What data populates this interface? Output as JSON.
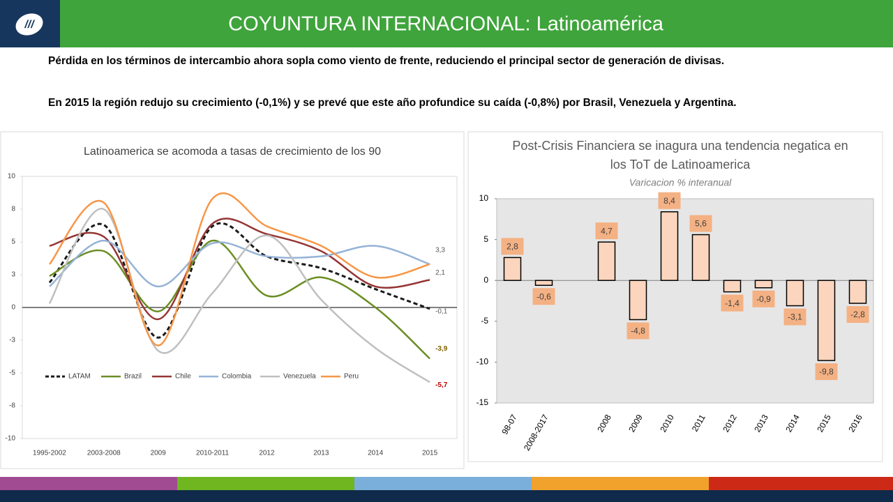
{
  "header": {
    "title": "COYUNTURA INTERNACIONAL: Latinoamérica"
  },
  "paragraphs": [
    "Pérdida en los términos de intercambio ahora sopla como viento de frente, reduciendo el principal sector de generación de divisas.",
    "En 2015 la región redujo su crecimiento (-0,1%) y se prevé que este año profundice su caída (-0,8%) por Brasil, Venezuela y Argentina."
  ],
  "chart_data": [
    {
      "type": "line",
      "title": "Latinoamerica se acomoda a tasas de crecimiento de los 90",
      "categories": [
        "1995-2002",
        "2003-2008",
        "2009",
        "2010-2011",
        "2012",
        "2013",
        "2014",
        "2015"
      ],
      "ylim": [
        -10,
        10
      ],
      "yticks": [
        10,
        {
          "value": 7.5,
          "label": "8"
        },
        5,
        {
          "value": 2.5,
          "label": "3"
        },
        0,
        {
          "value": -2.5,
          "label": "-3"
        },
        -5,
        {
          "value": -7.5,
          "label": "-8"
        },
        -10
      ],
      "series": [
        {
          "name": "LATAM",
          "color": "#1a1a1a",
          "dashed": true,
          "values": [
            1.9,
            6.3,
            -2.3,
            6.2,
            3.9,
            3.0,
            1.4,
            -0.1
          ],
          "value_labels": [
            null,
            null,
            null,
            null,
            null,
            null,
            null,
            "-0,1"
          ],
          "label_color": "#595959"
        },
        {
          "name": "Brazil",
          "color": "#6b8e23",
          "values": [
            2.4,
            4.3,
            -0.3,
            5.1,
            0.9,
            2.3,
            0.0,
            -3.9
          ],
          "value_labels": [
            null,
            null,
            null,
            null,
            null,
            null,
            null,
            "-3,9"
          ],
          "label_color": "#7f6000"
        },
        {
          "name": "Chile",
          "color": "#943634",
          "values": [
            4.7,
            5.4,
            -0.9,
            6.4,
            5.6,
            4.3,
            1.6,
            2.1
          ],
          "value_labels": [
            null,
            null,
            null,
            null,
            null,
            null,
            null,
            "2,1"
          ],
          "label_color": "#595959"
        },
        {
          "name": "Colombia",
          "color": "#95b3d7",
          "values": [
            1.6,
            5.1,
            1.6,
            4.9,
            3.9,
            3.9,
            4.7,
            3.3
          ],
          "value_labels": [
            null,
            null,
            null,
            null,
            null,
            null,
            null,
            "3,3"
          ],
          "label_color": "#595959"
        },
        {
          "name": "Venezuela",
          "color": "#bfbfbf",
          "values": [
            0.3,
            7.5,
            -3.3,
            1.1,
            5.5,
            0.6,
            -3.1,
            -5.7
          ],
          "value_labels": [
            null,
            null,
            null,
            null,
            null,
            null,
            null,
            "-5,7"
          ],
          "label_color": "#c00000"
        },
        {
          "name": "Peru",
          "color": "#f79646",
          "values": [
            3.3,
            8.0,
            -2.9,
            8.3,
            6.2,
            4.7,
            2.3,
            3.3
          ]
        }
      ]
    },
    {
      "type": "bar",
      "title": [
        "Post-Crisis Financiera se inagura una tendencia negatica en",
        "los ToT de Latinoamerica"
      ],
      "subtitle": "Varicacion % interanual",
      "categories": [
        "98-07",
        "2008-2017",
        null,
        "2008",
        "2009",
        "2010",
        "2011",
        "2012",
        "2013",
        "2014",
        "2015",
        "2016"
      ],
      "values": [
        2.8,
        -0.6,
        null,
        4.7,
        -4.8,
        8.4,
        5.6,
        -1.4,
        -0.9,
        -3.1,
        -9.8,
        -2.8
      ],
      "value_labels": [
        "2,8",
        "-0,6",
        null,
        "4,7",
        "-4,8",
        "8,4",
        "5,6",
        "-1,4",
        "-0,9",
        "-3,1",
        "-9,8",
        "-2,8"
      ],
      "color": "#fbd5bd",
      "label_background": "#f4b183",
      "ylim": [
        -15,
        10
      ],
      "yticks": [
        10,
        5,
        0,
        -5,
        -10,
        -15
      ]
    }
  ]
}
